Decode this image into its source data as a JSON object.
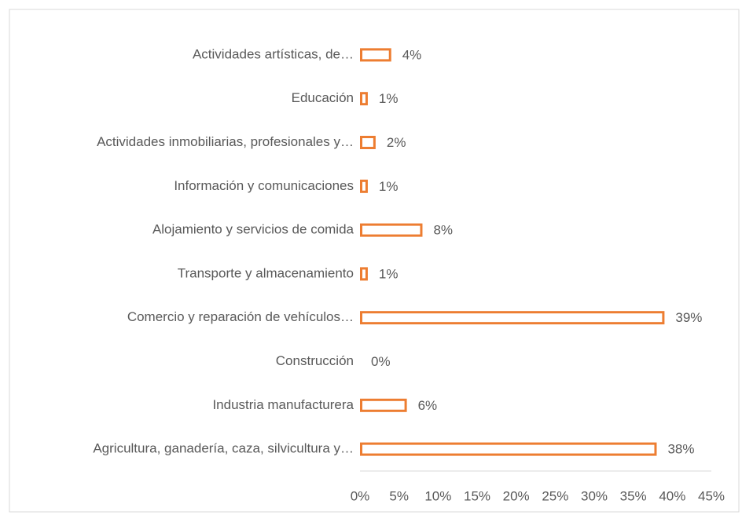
{
  "chart_data": {
    "type": "bar",
    "orientation": "horizontal",
    "categories": [
      "Actividades artísticas, de…",
      "Educación",
      "Actividades inmobiliarias, profesionales y…",
      "Información y comunicaciones",
      "Alojamiento y servicios de comida",
      "Transporte y almacenamiento",
      "Comercio y reparación de vehículos…",
      "Construcción",
      "Industria manufacturera",
      "Agricultura, ganadería, caza, silvicultura y…"
    ],
    "values": [
      4,
      1,
      2,
      1,
      8,
      1,
      39,
      0,
      6,
      38
    ],
    "value_labels": [
      "4%",
      "1%",
      "2%",
      "1%",
      "8%",
      "1%",
      "39%",
      "0%",
      "6%",
      "38%"
    ],
    "color": "#ed7d31",
    "xlim": [
      0,
      45
    ],
    "xticks": [
      {
        "value": 0,
        "label": "0%"
      },
      {
        "value": 5,
        "label": "5%"
      },
      {
        "value": 10,
        "label": "10%"
      },
      {
        "value": 15,
        "label": "15%"
      },
      {
        "value": 20,
        "label": "20%"
      },
      {
        "value": 25,
        "label": "25%"
      },
      {
        "value": 30,
        "label": "30%"
      },
      {
        "value": 35,
        "label": "35%"
      },
      {
        "value": 40,
        "label": "40%"
      },
      {
        "value": 45,
        "label": "45%"
      }
    ],
    "grid": false
  }
}
